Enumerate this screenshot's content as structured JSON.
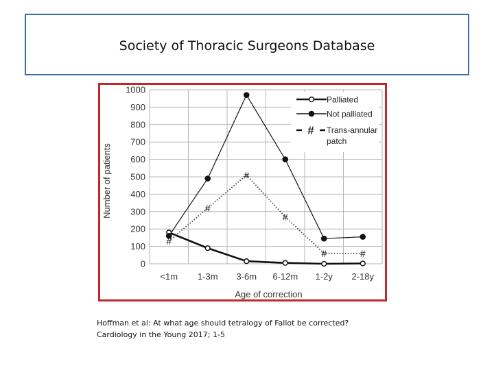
{
  "slide": {
    "title": "Society of Thoracic Surgeons Database",
    "citation_line1": "Hoffman et al: At what age should tetralogy of Fallot be corrected?",
    "citation_line2": "Cardiology in the Young 2017; 1-5"
  },
  "colors": {
    "frame": "#c0282d",
    "title_border": "#3a6ea5",
    "series": "#111111"
  },
  "chart_data": {
    "type": "line",
    "title": "",
    "xlabel": "Age of correction",
    "ylabel": "Number of patients",
    "categories": [
      "<1m",
      "1-3m",
      "3-6m",
      "6-12m",
      "1-2y",
      "2-18y"
    ],
    "ylim": [
      0,
      1000
    ],
    "yticks": [
      0,
      100,
      200,
      300,
      400,
      500,
      600,
      700,
      800,
      900,
      1000
    ],
    "grid": true,
    "legend_position": "top-right",
    "series": [
      {
        "name": "Palliated",
        "marker": "o",
        "line": "solid-thick",
        "values": [
          180,
          90,
          15,
          5,
          0,
          2
        ]
      },
      {
        "name": "Not palliated",
        "marker": "filled-dot",
        "line": "solid-thin",
        "values": [
          160,
          490,
          970,
          600,
          145,
          155
        ]
      },
      {
        "name": "Trans-annular patch",
        "marker": "#",
        "line": "dotted",
        "values": [
          130,
          320,
          510,
          270,
          60,
          60
        ]
      }
    ],
    "legend_labels": [
      "Palliated",
      "Not palliated",
      "Trans-annular",
      "patch"
    ]
  }
}
